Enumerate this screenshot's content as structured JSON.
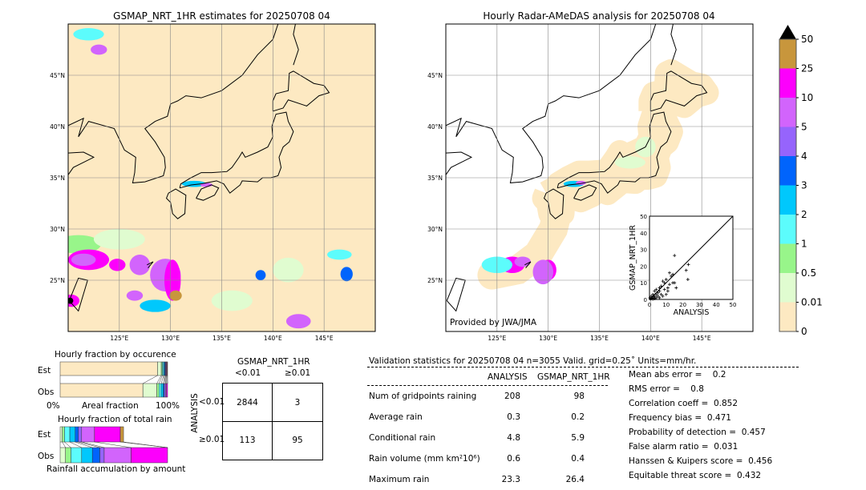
{
  "left_map": {
    "title": "GSMAP_NRT_1HR estimates for 20250708 04",
    "lat_labels": [
      "45°N",
      "40°N",
      "35°N",
      "30°N",
      "25°N"
    ],
    "lon_labels": [
      "125°E",
      "130°E",
      "135°E",
      "140°E",
      "145°E"
    ],
    "background_color": "#fde9c2"
  },
  "right_map": {
    "title": "Hourly Radar-AMeDAS analysis for 20250708 04",
    "lat_labels": [
      "45°N",
      "40°N",
      "35°N",
      "30°N",
      "25°N"
    ],
    "lon_labels": [
      "125°E",
      "130°E",
      "135°E",
      "140°E",
      "145°E"
    ],
    "credit": "Provided by JWA/JMA"
  },
  "colorbar": {
    "labels": [
      "0",
      "0.01",
      "0.5",
      "1",
      "2",
      "3",
      "4",
      "5",
      "10",
      "25",
      "50"
    ],
    "colors": [
      "#fde9c2",
      "#e0fcd0",
      "#98f58a",
      "#5cfcfc",
      "#00c8fc",
      "#0064fc",
      "#9664fc",
      "#d264fc",
      "#fc00fc",
      "#c8963c"
    ],
    "extend_color": "#000000"
  },
  "chart_data": [
    {
      "type": "scatter",
      "xlabel": "ANALYSIS",
      "ylabel": "GSMAP_NRT_1HR",
      "xlim": [
        0,
        50
      ],
      "ylim": [
        0,
        50
      ],
      "x_ticks": [
        "0",
        "10",
        "20",
        "30",
        "40",
        "50"
      ],
      "y_ticks": [
        "0",
        "10",
        "20",
        "30",
        "40",
        "50"
      ],
      "points": [
        [
          0.5,
          0.3
        ],
        [
          1,
          0.5
        ],
        [
          1.5,
          1
        ],
        [
          2,
          0.2
        ],
        [
          2.5,
          1.5
        ],
        [
          3,
          2
        ],
        [
          3,
          0.5
        ],
        [
          4,
          3
        ],
        [
          4,
          1
        ],
        [
          5,
          2
        ],
        [
          5,
          4
        ],
        [
          6,
          1
        ],
        [
          6,
          5
        ],
        [
          7,
          3
        ],
        [
          7,
          8
        ],
        [
          8,
          2
        ],
        [
          8,
          11
        ],
        [
          9,
          6
        ],
        [
          9,
          10
        ],
        [
          10,
          3
        ],
        [
          10,
          12
        ],
        [
          11,
          7
        ],
        [
          11,
          5
        ],
        [
          12,
          16
        ],
        [
          12,
          9
        ],
        [
          13,
          14
        ],
        [
          14,
          10
        ],
        [
          14,
          15
        ],
        [
          15,
          26.4
        ],
        [
          15,
          10
        ],
        [
          16,
          7
        ],
        [
          22,
          17.5
        ],
        [
          23,
          12
        ],
        [
          23.3,
          21
        ],
        [
          1,
          2
        ],
        [
          2,
          3
        ],
        [
          3,
          5
        ],
        [
          0.3,
          1
        ],
        [
          4,
          6
        ],
        [
          6,
          7
        ]
      ]
    },
    {
      "type": "bar",
      "title": "Hourly fraction by occurence",
      "categories": [
        "Est",
        "Obs"
      ],
      "xlabel": "Areal fraction",
      "x_ticks": [
        "0%",
        "100%"
      ],
      "series_colors": [
        "#fde9c2",
        "#e0fcd0",
        "#98f58a",
        "#5cfcfc",
        "#00c8fc",
        "#0064fc",
        "#9664fc",
        "#d264fc",
        "#fc00fc",
        "#c8963c"
      ],
      "values": {
        "Est": [
          0.906,
          0.035,
          0.01,
          0.012,
          0.008,
          0.008,
          0.006,
          0.006,
          0.005,
          0.004
        ],
        "Obs": [
          0.77,
          0.13,
          0.02,
          0.02,
          0.02,
          0.01,
          0.01,
          0.01,
          0.01,
          0.0
        ]
      }
    },
    {
      "type": "bar",
      "title": "Hourly fraction of total rain",
      "categories": [
        "Est",
        "Obs"
      ],
      "xlabel": "Rainfall accumulation by amount",
      "series_colors": [
        "#e0fcd0",
        "#98f58a",
        "#5cfcfc",
        "#00c8fc",
        "#0064fc",
        "#9664fc",
        "#d264fc",
        "#fc00fc",
        "#c8963c"
      ],
      "values": {
        "Est": [
          0.02,
          0.02,
          0.05,
          0.05,
          0.03,
          0.03,
          0.12,
          0.24,
          0.03
        ],
        "Obs": [
          0.05,
          0.05,
          0.1,
          0.1,
          0.07,
          0.04,
          0.25,
          0.34,
          0.0
        ]
      }
    },
    {
      "type": "table",
      "title": "GSMAP_NRT_1HR",
      "col_labels": [
        "<0.01",
        "≥0.01"
      ],
      "row_axis_label": "ANALYSIS",
      "row_labels": [
        "<0.01",
        "≥0.01"
      ],
      "cells": [
        [
          "2844",
          "3"
        ],
        [
          "113",
          "95"
        ]
      ]
    }
  ],
  "stats": {
    "header": "Validation statistics for 20250708 04  n=3055 Valid. grid=0.25˚ Units=mm/hr.",
    "columns": [
      "ANALYSIS",
      "GSMAP_NRT_1HR"
    ],
    "rows": [
      {
        "label": "Num of gridpoints raining",
        "a": "208",
        "g": "98"
      },
      {
        "label": "Average rain",
        "a": "0.3",
        "g": "0.2"
      },
      {
        "label": "Conditional rain",
        "a": "4.8",
        "g": "5.9"
      },
      {
        "label": "Rain volume (mm km²10⁶)",
        "a": "0.6",
        "g": "0.4"
      },
      {
        "label": "Maximum rain",
        "a": "23.3",
        "g": "26.4"
      }
    ],
    "scores": [
      "Mean abs error =    0.2",
      "RMS error =    0.8",
      "Correlation coeff =  0.852",
      "Frequency bias =  0.471",
      "Probability of detection =  0.457",
      "False alarm ratio =  0.031",
      "Hanssen & Kuipers score =  0.456",
      "Equitable threat score =  0.432"
    ]
  }
}
